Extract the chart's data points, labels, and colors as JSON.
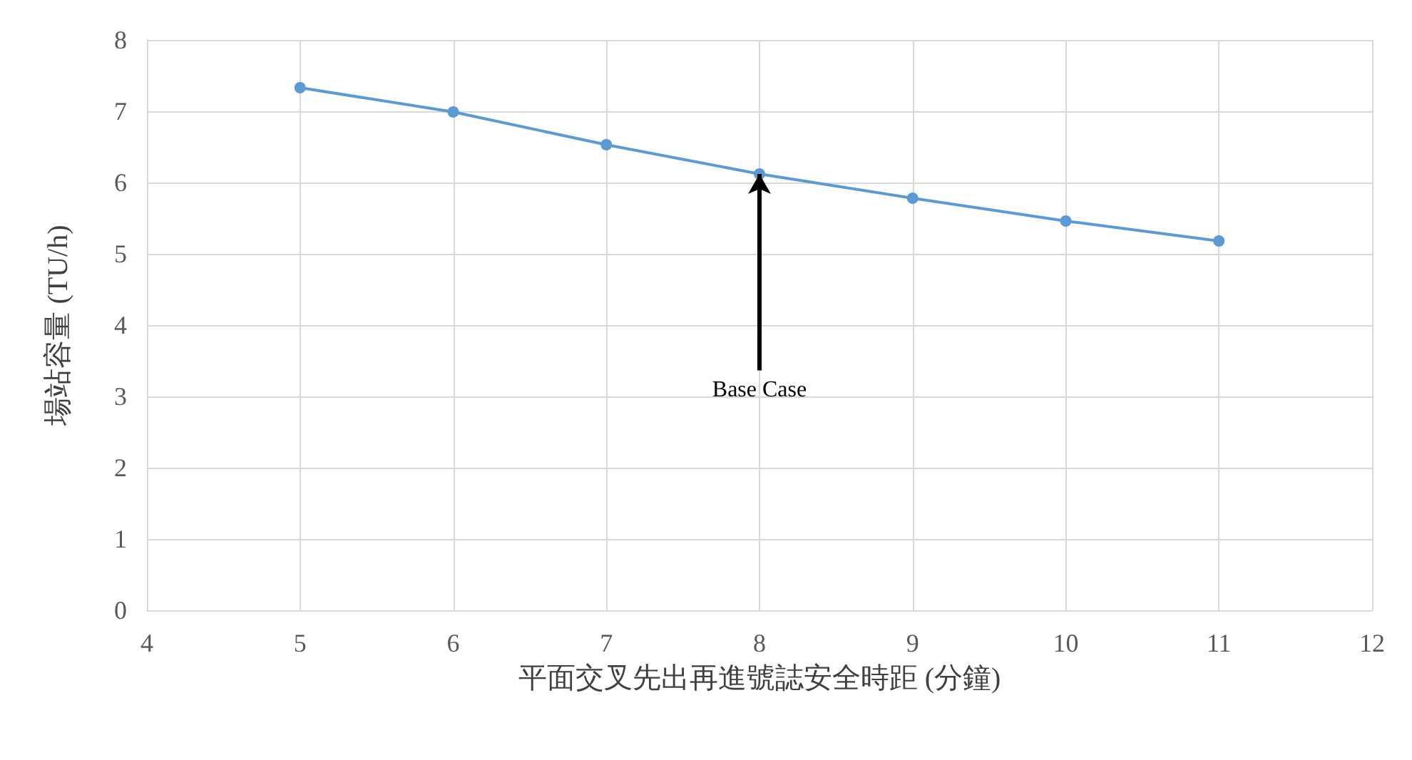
{
  "chart_data": {
    "type": "line",
    "xlabel": "平面交叉先出再進號誌安全時距 (分鐘)",
    "ylabel": "場站容量 (TU/h)",
    "x": [
      5,
      6,
      7,
      8,
      9,
      10,
      11
    ],
    "series": [
      {
        "color": "#5b9bd5",
        "values": [
          7.33,
          6.99,
          6.53,
          6.12,
          5.78,
          5.46,
          5.18
        ]
      }
    ],
    "xlim": [
      4,
      12
    ],
    "xticks": [
      4,
      5,
      6,
      7,
      8,
      9,
      10,
      11,
      12
    ],
    "ylim": [
      0,
      8
    ],
    "yticks": [
      0,
      1,
      2,
      3,
      4,
      5,
      6,
      7,
      8
    ],
    "grid": true,
    "marker": "circle",
    "line_style": "solid",
    "annotations": [
      {
        "text": "Base Case",
        "x": 8,
        "y": 6.12
      }
    ]
  }
}
